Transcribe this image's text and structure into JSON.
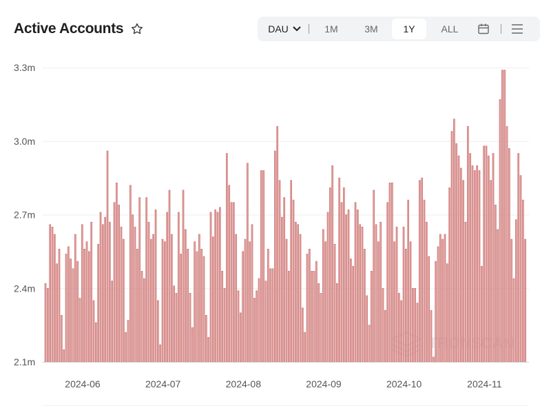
{
  "header": {
    "title": "Active Accounts",
    "favorite_icon": "star-outline-icon"
  },
  "toolbar": {
    "metric": "DAU",
    "ranges": [
      "1M",
      "3M",
      "1Y",
      "ALL"
    ],
    "active_range": "1Y",
    "calendar_icon": "calendar-icon",
    "menu_icon": "menu-icon"
  },
  "watermark": "TRONSCAN",
  "colors": {
    "bar_fill": "#e3a3a1",
    "bar_stroke": "#c46765",
    "grid": "#eeeeee"
  },
  "chart_data": {
    "type": "bar",
    "title": "Active Accounts",
    "xlabel": "",
    "ylabel": "",
    "ylim": [
      2.1,
      3.3
    ],
    "y_unit": "m",
    "y_ticks": [
      "2.1m",
      "2.4m",
      "2.7m",
      "3.0m",
      "3.3m"
    ],
    "y_tick_values": [
      2.1,
      2.4,
      2.7,
      3.0,
      3.3
    ],
    "x_ticks": [
      {
        "label": "2024-06",
        "index": 16
      },
      {
        "label": "2024-07",
        "index": 51
      },
      {
        "label": "2024-08",
        "index": 86
      },
      {
        "label": "2024-09",
        "index": 121
      },
      {
        "label": "2024-10",
        "index": 156
      },
      {
        "label": "2024-11",
        "index": 191
      }
    ],
    "grid": true,
    "series": [
      {
        "name": "DAU",
        "values": [
          2.42,
          2.4,
          2.66,
          2.65,
          2.62,
          2.5,
          2.56,
          2.29,
          2.15,
          2.54,
          2.57,
          2.52,
          2.48,
          2.62,
          2.51,
          2.36,
          2.66,
          2.56,
          2.59,
          2.55,
          2.67,
          2.35,
          2.26,
          2.58,
          2.71,
          2.66,
          2.69,
          2.96,
          2.67,
          2.43,
          2.75,
          2.83,
          2.74,
          2.65,
          2.6,
          2.22,
          2.27,
          2.82,
          2.7,
          2.65,
          2.56,
          2.77,
          2.47,
          2.44,
          2.77,
          2.67,
          2.6,
          2.62,
          2.72,
          2.35,
          2.17,
          2.6,
          2.59,
          2.71,
          2.8,
          2.62,
          2.41,
          2.38,
          2.71,
          2.54,
          2.8,
          2.64,
          2.56,
          2.38,
          2.24,
          2.59,
          2.55,
          2.62,
          2.56,
          2.53,
          2.29,
          2.2,
          2.71,
          2.61,
          2.72,
          2.71,
          2.73,
          2.47,
          2.4,
          2.95,
          2.82,
          2.75,
          2.75,
          2.62,
          2.39,
          2.3,
          2.55,
          2.6,
          2.91,
          2.59,
          2.66,
          2.36,
          2.39,
          2.44,
          2.88,
          2.88,
          2.43,
          2.56,
          2.48,
          2.48,
          2.96,
          3.06,
          2.84,
          2.69,
          2.77,
          2.6,
          2.47,
          2.84,
          2.76,
          2.67,
          2.66,
          2.62,
          2.32,
          2.22,
          2.54,
          2.56,
          2.47,
          2.47,
          2.51,
          2.42,
          2.38,
          2.64,
          2.59,
          2.71,
          2.81,
          2.9,
          2.58,
          2.42,
          2.85,
          2.75,
          2.81,
          2.7,
          2.72,
          2.52,
          2.49,
          2.75,
          2.72,
          2.66,
          2.65,
          2.56,
          2.37,
          2.25,
          2.47,
          2.8,
          2.66,
          2.59,
          2.67,
          2.4,
          2.31,
          2.75,
          2.83,
          2.83,
          2.59,
          2.65,
          2.38,
          2.35,
          2.65,
          2.56,
          2.76,
          2.59,
          2.4,
          2.4,
          2.34,
          2.84,
          2.85,
          2.76,
          2.67,
          2.53,
          2.31,
          2.12,
          2.51,
          2.57,
          2.62,
          2.6,
          2.62,
          2.5,
          2.81,
          3.04,
          3.09,
          2.99,
          2.94,
          2.89,
          2.84,
          2.67,
          3.06,
          2.95,
          2.9,
          2.88,
          2.9,
          2.88,
          2.49,
          2.98,
          2.98,
          2.94,
          2.84,
          2.95,
          2.74,
          2.64,
          3.17,
          3.29,
          3.29,
          3.06,
          2.97,
          2.6,
          2.44,
          2.68,
          2.95,
          2.86,
          2.76,
          2.6
        ]
      }
    ]
  }
}
